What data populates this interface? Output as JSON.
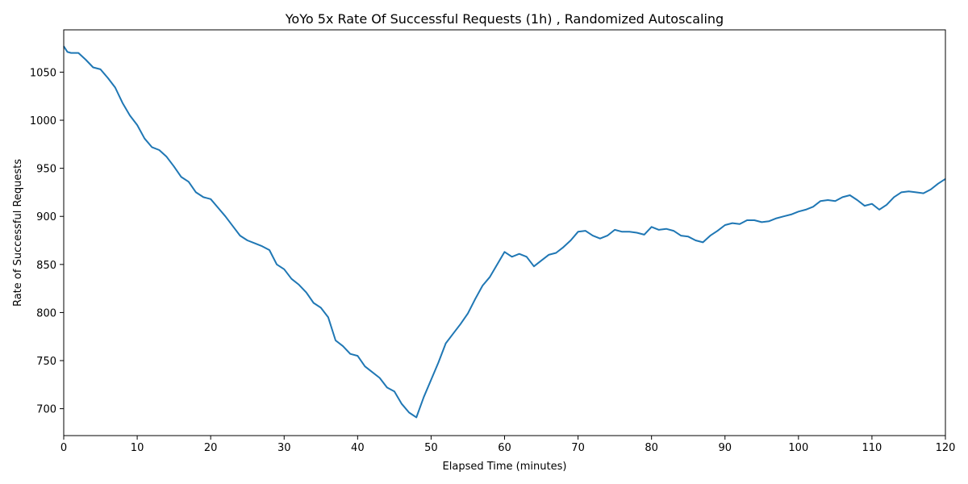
{
  "chart_data": {
    "type": "line",
    "title": "YoYo 5x Rate Of Successful Requests (1h) , Randomized Autoscaling",
    "xlabel": "Elapsed Time (minutes)",
    "ylabel": "Rate of Successful Requests",
    "xlim": [
      0,
      120
    ],
    "ylim": [
      672,
      1094
    ],
    "xticks": [
      0,
      10,
      20,
      30,
      40,
      50,
      60,
      70,
      80,
      90,
      100,
      110,
      120
    ],
    "yticks": [
      700,
      750,
      800,
      850,
      900,
      950,
      1000,
      1050
    ],
    "grid": false,
    "legend": "none",
    "colors": {
      "line": "#1f77b4"
    },
    "series": [
      {
        "x": [
          0,
          0.5,
          1,
          2,
          3,
          4,
          5,
          6,
          7,
          8,
          9,
          10,
          11,
          12,
          13,
          14,
          15,
          16,
          17,
          18,
          19,
          20,
          21,
          22,
          23,
          24,
          25,
          26,
          27,
          28,
          29,
          30,
          31,
          32,
          33,
          34,
          35,
          36,
          37,
          38,
          39,
          40,
          41,
          42,
          43,
          44,
          45,
          46,
          47,
          48,
          49,
          50,
          51,
          52,
          53,
          54,
          55,
          56,
          57,
          58,
          59,
          60,
          61,
          62,
          63,
          64,
          65,
          66,
          67,
          68,
          69,
          70,
          71,
          72,
          73,
          74,
          75,
          76,
          77,
          78,
          79,
          80,
          81,
          82,
          83,
          84,
          85,
          86,
          87,
          88,
          89,
          90,
          91,
          92,
          93,
          94,
          95,
          96,
          97,
          98,
          99,
          100,
          101,
          102,
          103,
          104,
          105,
          106,
          107,
          108,
          109,
          110,
          111,
          112,
          113,
          114,
          115,
          116,
          117,
          118,
          119,
          120
        ],
        "values": [
          1077,
          1071,
          1070,
          1070,
          1063,
          1055,
          1053,
          1044,
          1034,
          1018,
          1005,
          995,
          981,
          972,
          969,
          962,
          952,
          941,
          936,
          925,
          920,
          918,
          909,
          900,
          890,
          880,
          875,
          872,
          869,
          865,
          850,
          845,
          835,
          829,
          821,
          810,
          805,
          795,
          771,
          765,
          757,
          755,
          744,
          738,
          732,
          722,
          718,
          705,
          696,
          691,
          712,
          730,
          748,
          768,
          778,
          788,
          799,
          814,
          828,
          837,
          850,
          863,
          858,
          861,
          858,
          848,
          854,
          860,
          862,
          868,
          875,
          884,
          885,
          880,
          877,
          880,
          886,
          884,
          884,
          883,
          881,
          889,
          886,
          887,
          885,
          880,
          879,
          875,
          873,
          880,
          885,
          891,
          893,
          892,
          896,
          896,
          894,
          895,
          898,
          900,
          902,
          905,
          907,
          910,
          916,
          917,
          916,
          920,
          922,
          917,
          911,
          913,
          907,
          912,
          920,
          925,
          926,
          925,
          924,
          928,
          934,
          939
        ]
      }
    ]
  }
}
